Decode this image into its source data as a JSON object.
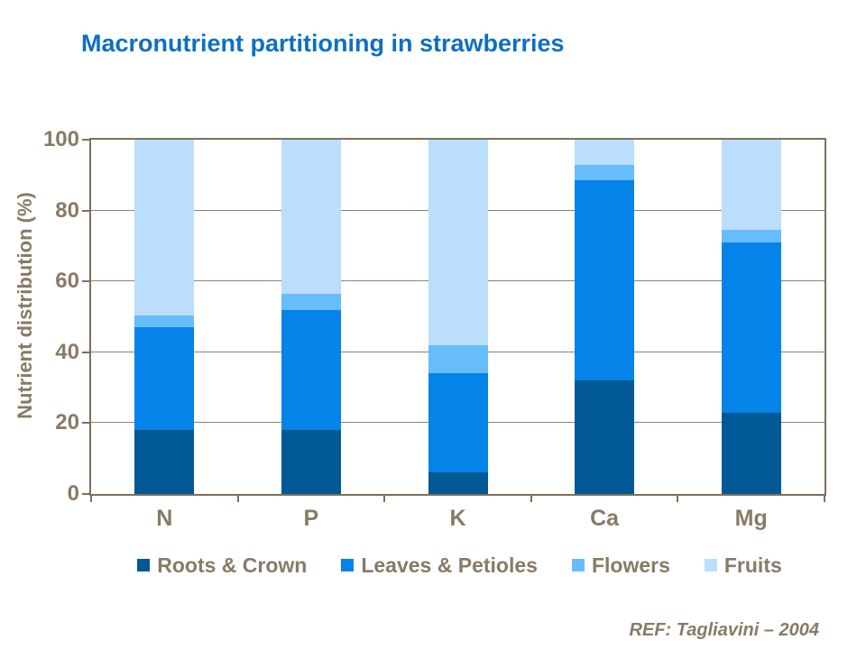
{
  "title": "Macronutrient partitioning in strawberries",
  "reference": "REF: Tagliavini – 2004",
  "colors": {
    "title_text": "#0C70C4",
    "axis_text": "#897A66",
    "frame": "#7F7058",
    "gridline": "#8F8171",
    "roots_crown": "#005896",
    "leaves_petioles": "#0483E8",
    "flowers": "#67BCFC",
    "fruits": "#BADEFB"
  },
  "chart_data": {
    "type": "bar",
    "stacked": true,
    "title": "Macronutrient partitioning in strawberries",
    "categories": [
      "N",
      "P",
      "K",
      "Ca",
      "Mg"
    ],
    "series": [
      {
        "name": "Roots & Crown",
        "color": "#005896",
        "values": [
          18,
          18,
          6,
          32,
          23
        ]
      },
      {
        "name": "Leaves & Petioles",
        "color": "#0483E8",
        "values": [
          29,
          34,
          28,
          56.5,
          48
        ]
      },
      {
        "name": "Flowers",
        "color": "#67BCFC",
        "values": [
          3.5,
          4.5,
          8,
          4.5,
          3.5
        ]
      },
      {
        "name": "Fruits",
        "color": "#BADEFB",
        "values": [
          49.5,
          43.5,
          58,
          7,
          25.5
        ]
      }
    ],
    "xlabel": "",
    "ylabel": "Nutrient distribution (%)",
    "ylim": [
      0,
      100
    ],
    "yticks": [
      0,
      20,
      40,
      60,
      80,
      100
    ],
    "grid": true,
    "legend_position": "bottom"
  }
}
